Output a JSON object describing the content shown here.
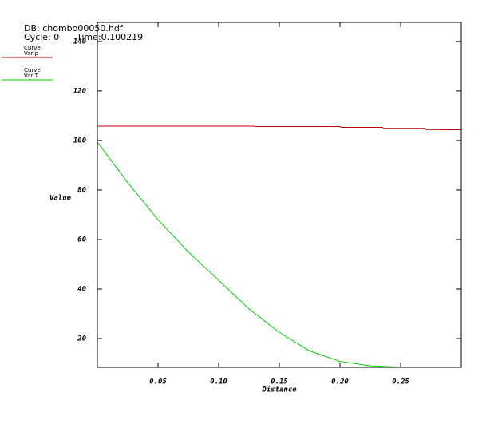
{
  "chart_data": {
    "type": "line",
    "database": "DB: chombo00050.hdf",
    "cycle": "Cycle: 0",
    "time": "Time:0.100219",
    "xlabel": "Distance",
    "ylabel": "Value",
    "xlim": [
      0,
      0.3
    ],
    "ylim": [
      8.4,
      147.7
    ],
    "xticks": [
      0.05,
      {
        "value": 0.1,
        "label": "0.10"
      },
      0.15,
      {
        "value": 0.2,
        "label": "0.20"
      },
      0.25
    ],
    "yticks": [
      20,
      40,
      60,
      80,
      100,
      120,
      140
    ],
    "series": [
      {
        "name": "Curve",
        "variable": "Var:p",
        "color": "#c00000",
        "x": [
          0,
          0.13,
          0.131,
          0.2,
          0.201,
          0.235,
          0.236,
          0.27,
          0.271,
          0.3
        ],
        "values": [
          105.8,
          105.8,
          105.6,
          105.6,
          105.3,
          105.3,
          104.9,
          104.9,
          104.4,
          104.3
        ]
      },
      {
        "name": "Curve",
        "variable": "Var:T",
        "color": "#00cc00",
        "x": [
          0,
          0.025,
          0.05,
          0.075,
          0.1,
          0.125,
          0.15,
          0.175,
          0.2,
          0.225,
          0.245
        ],
        "values": [
          99.4,
          83,
          68,
          55,
          43.5,
          32,
          22.5,
          15,
          10.8,
          9,
          8.6
        ]
      }
    ]
  }
}
